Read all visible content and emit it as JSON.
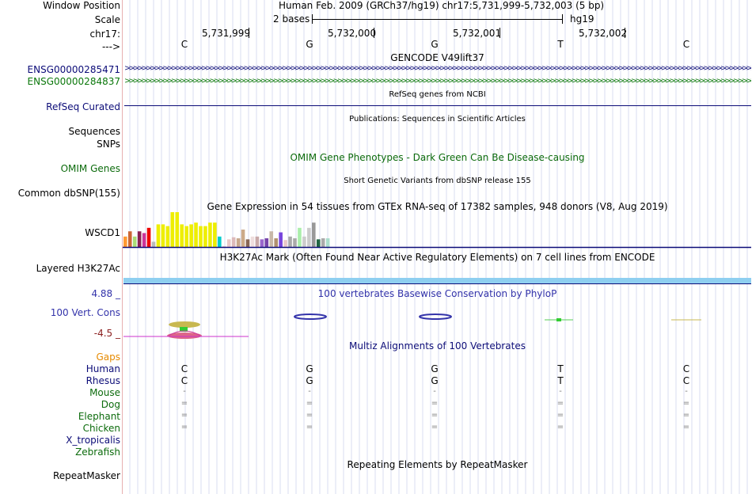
{
  "header": {
    "window_position_label": "Window Position",
    "window_position_text": "Human Feb. 2009 (GRCh37/hg19)   chr17:5,731,999-5,732,003 (5 bp)",
    "scale_label": "Scale",
    "scale_text": "2 bases",
    "assembly": "hg19",
    "chrom_label": "chr17:",
    "strand_label": "--->",
    "positions": [
      "5,731,999",
      "5,732,000",
      "5,732,001",
      "5,732,002"
    ],
    "bases": [
      "C",
      "G",
      "G",
      "T",
      "C"
    ]
  },
  "tracks": {
    "gencode": {
      "title": "GENCODE V49lift37",
      "genes": [
        {
          "name": "ENSG00000285471",
          "color": "#0c0c78"
        },
        {
          "name": "ENSG00000284837",
          "color": "#0c780c"
        }
      ]
    },
    "refseq": {
      "title": "RefSeq genes from NCBI",
      "label": "RefSeq Curated",
      "color": "#0c0c78"
    },
    "publications": {
      "title": "Publications: Sequences in Scientific Articles",
      "labels": [
        "Sequences",
        "SNPs"
      ]
    },
    "omim": {
      "title": "OMIM Gene Phenotypes - Dark Green Can Be Disease-causing",
      "label": "OMIM Genes",
      "color": "#0c6b0c"
    },
    "dbsnp": {
      "title": "Short Genetic Variants from dbSNP release 155",
      "label": "Common dbSNP(155)"
    },
    "gtex": {
      "title": "Gene Expression in 54 tissues from GTEx RNA-seq of 17382 samples, 948 donors (V8, Aug 2019)",
      "label": "WSCD1",
      "bars": [
        {
          "value": 0.3,
          "color": "#ff9933"
        },
        {
          "value": 0.45,
          "color": "#cc6633"
        },
        {
          "value": 0.3,
          "color": "#aadd77"
        },
        {
          "value": 0.45,
          "color": "#8b2252"
        },
        {
          "value": 0.4,
          "color": "#cc3399"
        },
        {
          "value": 0.55,
          "color": "#ee0000"
        },
        {
          "value": 0.15,
          "color": "#bbbbbb"
        },
        {
          "value": 0.65,
          "color": "#eeee00"
        },
        {
          "value": 0.65,
          "color": "#eeee00"
        },
        {
          "value": 0.6,
          "color": "#eeee00"
        },
        {
          "value": 1.0,
          "color": "#eeee00"
        },
        {
          "value": 1.0,
          "color": "#eeee00"
        },
        {
          "value": 0.65,
          "color": "#eeee00"
        },
        {
          "value": 0.6,
          "color": "#eeee00"
        },
        {
          "value": 0.65,
          "color": "#eeee00"
        },
        {
          "value": 0.7,
          "color": "#eeee00"
        },
        {
          "value": 0.6,
          "color": "#eeee00"
        },
        {
          "value": 0.6,
          "color": "#eeee00"
        },
        {
          "value": 0.7,
          "color": "#eeee00"
        },
        {
          "value": 0.7,
          "color": "#eeee00"
        },
        {
          "value": 0.3,
          "color": "#00cccc"
        },
        {
          "value": 0.02,
          "color": "#e8c8c8"
        },
        {
          "value": 0.22,
          "color": "#e8c8c8"
        },
        {
          "value": 0.28,
          "color": "#ddbbbb"
        },
        {
          "value": 0.25,
          "color": "#c8a88c"
        },
        {
          "value": 0.5,
          "color": "#ccaa88"
        },
        {
          "value": 0.22,
          "color": "#886655"
        },
        {
          "value": 0.3,
          "color": "#eedddd"
        },
        {
          "value": 0.3,
          "color": "#c8a8a8"
        },
        {
          "value": 0.22,
          "color": "#9966cc"
        },
        {
          "value": 0.25,
          "color": "#7744aa"
        },
        {
          "value": 0.45,
          "color": "#c8b8a8"
        },
        {
          "value": 0.25,
          "color": "#b09070"
        },
        {
          "value": 0.42,
          "color": "#7744dd"
        },
        {
          "value": 0.2,
          "color": "#e8c8c8"
        },
        {
          "value": 0.3,
          "color": "#aaaaaa"
        },
        {
          "value": 0.25,
          "color": "#aaaaaa"
        },
        {
          "value": 0.55,
          "color": "#aaeeaa"
        },
        {
          "value": 0.3,
          "color": "#cccccc"
        },
        {
          "value": 0.55,
          "color": "#cccccc"
        },
        {
          "value": 0.7,
          "color": "#999999"
        },
        {
          "value": 0.22,
          "color": "#226644"
        },
        {
          "value": 0.25,
          "color": "#aaaaaa"
        },
        {
          "value": 0.25,
          "color": "#aaddcc"
        }
      ]
    },
    "h3k27ac": {
      "title": "H3K27Ac Mark (Often Found Near Active Regulatory Elements) on 7 cell lines from ENCODE",
      "label": "Layered H3K27Ac"
    },
    "phylop": {
      "title": "100 vertebrates Basewise Conservation by PhyloP",
      "label": "100 Vert. Cons",
      "max_label": "4.88 _",
      "min_label": "-4.5 _"
    },
    "multiz": {
      "title": "Multiz Alignments of 100 Vertebrates",
      "gaps_label": "Gaps",
      "species": [
        {
          "name": "Human",
          "color": "#0c0c78",
          "bases": [
            "C",
            "G",
            "G",
            "T",
            "C"
          ]
        },
        {
          "name": "Rhesus",
          "color": "#0c0c78",
          "bases": [
            "C",
            "G",
            "G",
            "T",
            "C"
          ]
        },
        {
          "name": "Mouse",
          "color": "#0c6b0c",
          "bases": [
            "-",
            "-",
            "-",
            "-",
            "-"
          ]
        },
        {
          "name": "Dog",
          "color": "#0c6b0c",
          "bases": [
            "=",
            "=",
            "=",
            "=",
            "="
          ]
        },
        {
          "name": "Elephant",
          "color": "#0c6b0c",
          "bases": [
            "=",
            "=",
            "=",
            "=",
            "="
          ]
        },
        {
          "name": "Chicken",
          "color": "#0c6b0c",
          "bases": [
            "=",
            "=",
            "=",
            "=",
            "="
          ]
        },
        {
          "name": "X_tropicalis",
          "color": "#0c0c78",
          "bases": [
            "",
            "",
            "",
            "",
            ""
          ]
        },
        {
          "name": "Zebrafish",
          "color": "#0c6b0c",
          "bases": [
            "",
            "",
            "",
            "",
            ""
          ]
        }
      ]
    },
    "repeatmasker": {
      "title": "Repeating Elements by RepeatMasker",
      "label": "RepeatMasker"
    }
  },
  "colors": {
    "label_blue": "#0c0c78",
    "label_green": "#0c6b0c",
    "gaps_orange": "#e68a00",
    "phylop_red": "#8b2020",
    "phylop_blue": "#3333aa"
  }
}
